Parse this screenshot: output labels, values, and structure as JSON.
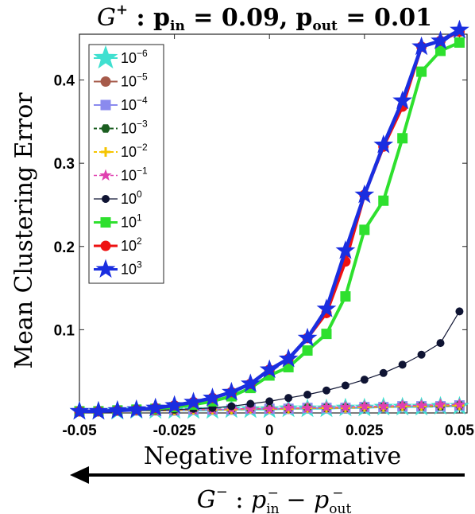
{
  "chart_data": {
    "type": "line",
    "title": {
      "graph": "G",
      "sup": "+",
      "sep": " : ",
      "p_in_base": "p",
      "p_in_sub": "in",
      "p_in_value": " = 0.09,",
      "p_out_base": "p",
      "p_out_sub": "out",
      "p_out_value": " = 0.01"
    },
    "ylabel": "Mean Clustering Error",
    "xlabel": "Negative Informative",
    "xaxis_formula": {
      "graph": "G",
      "sup": "−",
      "sep": " : ",
      "p1_base": "p",
      "p1_sub": "in",
      "p1_sup": "−",
      "minus": " − ",
      "p2_base": "p",
      "p2_sub": "out",
      "p2_sup": "−"
    },
    "xlim": [
      -0.05,
      0.052
    ],
    "ylim": [
      0,
      0.455
    ],
    "x_ticks": [
      -0.05,
      -0.025,
      0,
      0.025,
      0.05
    ],
    "x_tick_labels": [
      "-0.05",
      "-0.025",
      "0",
      "0.025",
      "0.05"
    ],
    "y_ticks": [
      0.1,
      0.2,
      0.3,
      0.4
    ],
    "y_tick_labels": [
      "0.1",
      "0.2",
      "0.3",
      "0.4"
    ],
    "grid": false,
    "legend_position": "top-left",
    "x": [
      -0.05,
      -0.045,
      -0.04,
      -0.035,
      -0.03,
      -0.025,
      -0.02,
      -0.015,
      -0.01,
      -0.005,
      0,
      0.005,
      0.01,
      0.015,
      0.02,
      0.025,
      0.03,
      0.035,
      0.04,
      0.045,
      0.05
    ],
    "series": [
      {
        "name_base": "10",
        "name_exp": "−6",
        "color": "#40e0d0",
        "marker": "star",
        "values": [
          0.002,
          0.002,
          0.002,
          0.003,
          0.003,
          0.003,
          0.003,
          0.003,
          0.004,
          0.004,
          0.004,
          0.005,
          0.005,
          0.005,
          0.006,
          0.006,
          0.007,
          0.007,
          0.007,
          0.008,
          0.008
        ]
      },
      {
        "name_base": "10",
        "name_exp": "−5",
        "color": "#a65a4a",
        "marker": "circle",
        "values": [
          0.002,
          0.002,
          0.003,
          0.003,
          0.003,
          0.003,
          0.004,
          0.004,
          0.004,
          0.005,
          0.005,
          0.005,
          0.006,
          0.006,
          0.006,
          0.007,
          0.007,
          0.008,
          0.008,
          0.008,
          0.009
        ]
      },
      {
        "name_base": "10",
        "name_exp": "−4",
        "color": "#8a8aee",
        "marker": "square",
        "values": [
          0.002,
          0.002,
          0.003,
          0.003,
          0.003,
          0.003,
          0.004,
          0.004,
          0.004,
          0.005,
          0.005,
          0.005,
          0.006,
          0.006,
          0.006,
          0.007,
          0.007,
          0.008,
          0.008,
          0.008,
          0.009
        ]
      },
      {
        "name_base": "10",
        "name_exp": "−3",
        "color": "#1b5e20",
        "marker": "hexagon",
        "values": [
          0.002,
          0.002,
          0.003,
          0.003,
          0.003,
          0.003,
          0.004,
          0.004,
          0.004,
          0.005,
          0.005,
          0.005,
          0.006,
          0.006,
          0.006,
          0.007,
          0.007,
          0.008,
          0.008,
          0.008,
          0.009
        ]
      },
      {
        "name_base": "10",
        "name_exp": "−2",
        "color": "#f5c400",
        "marker": "plus",
        "values": [
          0.002,
          0.002,
          0.003,
          0.003,
          0.003,
          0.003,
          0.004,
          0.004,
          0.004,
          0.005,
          0.005,
          0.005,
          0.006,
          0.006,
          0.006,
          0.007,
          0.007,
          0.008,
          0.008,
          0.009,
          0.009
        ]
      },
      {
        "name_base": "10",
        "name_exp": "−1",
        "color": "#e040b0",
        "marker": "star-small",
        "values": [
          0.002,
          0.002,
          0.003,
          0.003,
          0.003,
          0.004,
          0.004,
          0.004,
          0.005,
          0.005,
          0.005,
          0.006,
          0.006,
          0.007,
          0.007,
          0.008,
          0.008,
          0.009,
          0.009,
          0.01,
          0.01
        ]
      },
      {
        "name_base": "10",
        "name_exp": "0",
        "color": "#0f1433",
        "marker": "circle-small",
        "values": [
          0.002,
          0.002,
          0.002,
          0.003,
          0.003,
          0.004,
          0.005,
          0.006,
          0.008,
          0.011,
          0.014,
          0.018,
          0.022,
          0.027,
          0.033,
          0.04,
          0.048,
          0.058,
          0.07,
          0.084,
          0.122
        ]
      },
      {
        "name_base": "10",
        "name_exp": "1",
        "color": "#2ee02e",
        "marker": "square",
        "values": [
          0.002,
          0.002,
          0.003,
          0.004,
          0.005,
          0.007,
          0.01,
          0.014,
          0.02,
          0.03,
          0.045,
          0.055,
          0.075,
          0.095,
          0.14,
          0.22,
          0.255,
          0.33,
          0.41,
          0.435,
          0.445
        ]
      },
      {
        "name_base": "10",
        "name_exp": "2",
        "color": "#ee1111",
        "marker": "circle",
        "values": [
          0.002,
          0.002,
          0.003,
          0.004,
          0.006,
          0.009,
          0.013,
          0.018,
          0.025,
          0.035,
          0.052,
          0.065,
          0.09,
          0.12,
          0.182,
          0.262,
          0.32,
          0.368,
          0.44,
          0.447,
          0.458
        ]
      },
      {
        "name_base": "10",
        "name_exp": "3",
        "color": "#1a2ee0",
        "marker": "star",
        "values": [
          0.002,
          0.002,
          0.003,
          0.004,
          0.006,
          0.009,
          0.013,
          0.018,
          0.025,
          0.035,
          0.052,
          0.065,
          0.09,
          0.125,
          0.195,
          0.262,
          0.322,
          0.375,
          0.44,
          0.447,
          0.46
        ]
      }
    ]
  }
}
